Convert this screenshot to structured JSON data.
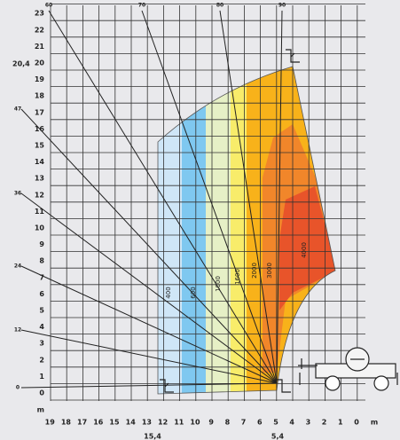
{
  "y_axis": {
    "labels": [
      0,
      1,
      2,
      3,
      4,
      5,
      6,
      7,
      8,
      9,
      10,
      11,
      12,
      13,
      14,
      15,
      16,
      17,
      18,
      19,
      20,
      21,
      22,
      23
    ],
    "unit": "m"
  },
  "x_axis": {
    "labels": [
      19,
      18,
      17,
      16,
      15,
      14,
      13,
      12,
      11,
      10,
      9,
      8,
      7,
      6,
      5,
      4,
      3,
      2,
      1,
      0
    ],
    "unit": "m"
  },
  "marks": {
    "max_height": "20,4",
    "max_reach": "15,4",
    "min_reach": "5,4"
  },
  "angles": {
    "top": [
      "60",
      "70",
      "80",
      "90"
    ],
    "left": [
      "47",
      "36",
      "24",
      "12",
      "0"
    ]
  },
  "capacities": [
    "400",
    "600",
    "1000",
    "1600",
    "2000",
    "3000",
    "4000"
  ]
}
